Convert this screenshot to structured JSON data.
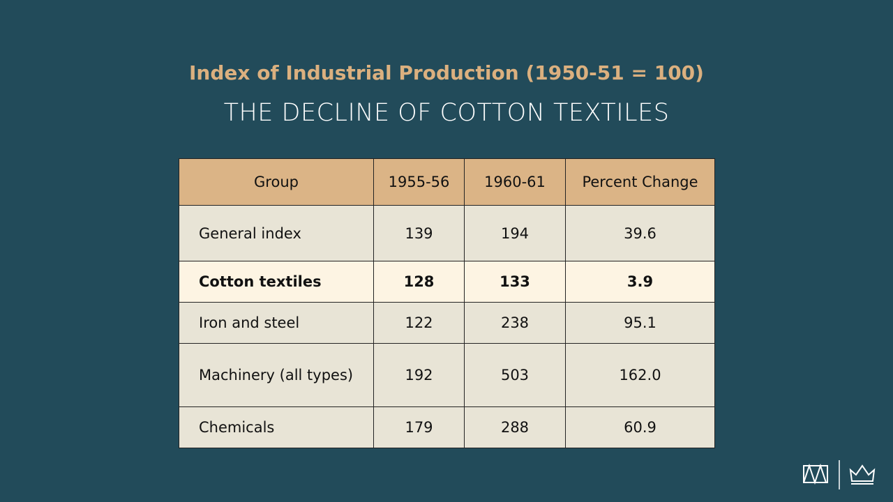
{
  "header": {
    "title": "Index of Industrial Production (1950-51 = 100)",
    "subtitle": "THE DECLINE OF COTTON TEXTILES"
  },
  "table": {
    "columns": [
      "Group",
      "1955-56",
      "1960-61",
      "Percent Change"
    ],
    "rows": [
      [
        "General index",
        "139",
        "194",
        "39.6"
      ],
      [
        "Cotton textiles",
        "128",
        "133",
        "3.9"
      ],
      [
        "Iron and steel",
        "122",
        "238",
        "95.1"
      ],
      [
        "Machinery (all types)",
        "192",
        "503",
        "162.0"
      ],
      [
        "Chemicals",
        "179",
        "288",
        "60.9"
      ]
    ]
  }
}
